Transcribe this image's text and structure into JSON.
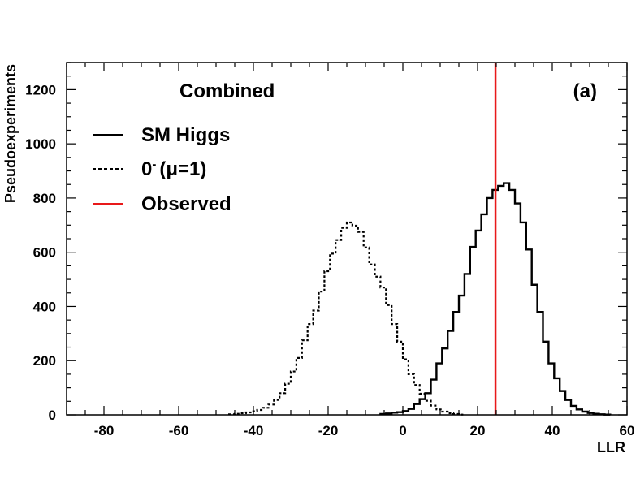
{
  "chart_data": {
    "type": "histogram",
    "title": "Combined",
    "panel_label": "(a)",
    "xlabel": "LLR",
    "ylabel": "Pseudoexperiments",
    "xlim": [
      -90,
      60
    ],
    "ylim": [
      0,
      1300
    ],
    "x_ticks": [
      -80,
      -60,
      -40,
      -20,
      0,
      20,
      40,
      60
    ],
    "y_ticks": [
      0,
      200,
      400,
      600,
      800,
      1000,
      1200
    ],
    "x_tick_labels": [
      "-80",
      "-60",
      "-40",
      "-20",
      "0",
      "20",
      "40",
      "60"
    ],
    "y_tick_labels": [
      "0",
      "200",
      "400",
      "600",
      "800",
      "1000",
      "1200"
    ],
    "bin_width": 1.5,
    "observed_llr": 24.8,
    "legend": {
      "sm_label": "SM Higgs",
      "alt_main": "0",
      "alt_sup": "-",
      "alt_rest": "(μ=1)",
      "obs_label": "Observed"
    },
    "series": [
      {
        "name": "SM Higgs",
        "style": "solid",
        "color": "#000000",
        "bins_start": -6,
        "values": [
          3,
          5,
          8,
          10,
          14,
          22,
          40,
          58,
          80,
          130,
          190,
          245,
          310,
          380,
          440,
          520,
          620,
          680,
          740,
          800,
          830,
          845,
          855,
          830,
          780,
          710,
          610,
          480,
          380,
          270,
          190,
          135,
          88,
          55,
          33,
          20,
          12,
          7,
          4,
          2,
          1
        ]
      },
      {
        "name": "0- (mu=1)",
        "style": "dotted",
        "color": "#000000",
        "bins_start": -46.5,
        "values": [
          2,
          4,
          6,
          9,
          13,
          18,
          26,
          38,
          55,
          80,
          115,
          160,
          210,
          275,
          335,
          385,
          455,
          530,
          595,
          645,
          690,
          710,
          698,
          675,
          618,
          555,
          510,
          470,
          405,
          335,
          270,
          205,
          150,
          110,
          78,
          52,
          34,
          20,
          12,
          6,
          3,
          1
        ]
      }
    ]
  },
  "colors": {
    "observed": "#e8191a",
    "axis": "#000000",
    "background": "#ffffff"
  }
}
